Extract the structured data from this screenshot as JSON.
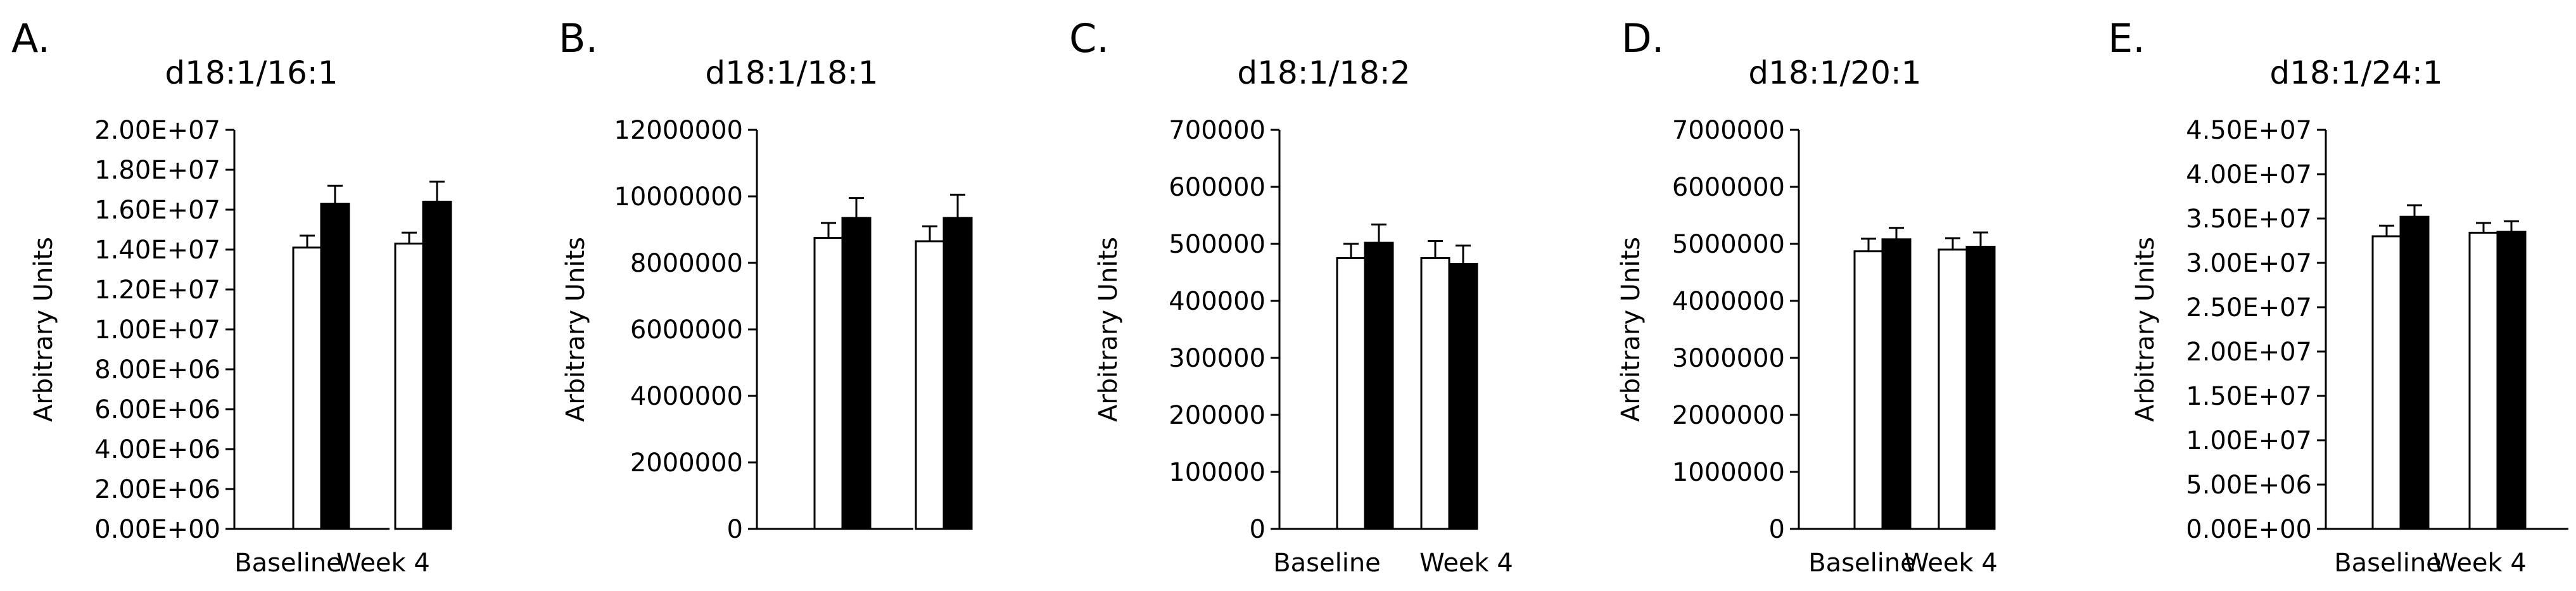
{
  "chart_data": [
    {
      "type": "bar",
      "panel_label": "A.",
      "title": "d18:1/16:1",
      "ylabel": "Arbitrary Units",
      "xlabel": "",
      "categories": [
        "Baseline",
        "Week 4"
      ],
      "series": [
        {
          "name": "open",
          "color": "#ffffff",
          "values": [
            14100000,
            14300000
          ],
          "errors": [
            600000,
            550000
          ]
        },
        {
          "name": "filled",
          "color": "#000000",
          "values": [
            16300000,
            16400000
          ],
          "errors": [
            900000,
            1000000
          ]
        }
      ],
      "ylim": [
        0,
        20000000
      ],
      "yticks": [
        0,
        2000000,
        4000000,
        6000000,
        8000000,
        10000000,
        12000000,
        14000000,
        16000000,
        18000000,
        20000000
      ],
      "ytick_labels": [
        "0.00E+00",
        "2.00E+06",
        "4.00E+06",
        "6.00E+06",
        "8.00E+06",
        "1.00E+07",
        "1.20E+07",
        "1.40E+07",
        "1.60E+07",
        "1.80E+07",
        "2.00E+07"
      ],
      "legend": "none",
      "grid": false
    },
    {
      "type": "bar",
      "panel_label": "B.",
      "title": "d18:1/18:1",
      "ylabel": "Arbitrary Units",
      "xlabel": "",
      "categories": [
        "Baseline",
        "Week 4"
      ],
      "series": [
        {
          "name": "open",
          "color": "#ffffff",
          "values": [
            8750000,
            8650000
          ],
          "errors": [
            450000,
            450000
          ]
        },
        {
          "name": "filled",
          "color": "#000000",
          "values": [
            9350000,
            9350000
          ],
          "errors": [
            600000,
            700000
          ]
        }
      ],
      "ylim": [
        0,
        12000000
      ],
      "yticks": [
        0,
        2000000,
        4000000,
        6000000,
        8000000,
        10000000,
        12000000
      ],
      "ytick_labels": [
        "0",
        "2000000",
        "4000000",
        "6000000",
        "8000000",
        "10000000",
        "12000000"
      ],
      "legend": "none",
      "grid": false
    },
    {
      "type": "bar",
      "panel_label": "C.",
      "title": "d18:1/18:2",
      "ylabel": "Arbitrary Units",
      "xlabel": "",
      "categories": [
        "Baseline",
        "Week 4"
      ],
      "series": [
        {
          "name": "open",
          "color": "#ffffff",
          "values": [
            475000,
            475000
          ],
          "errors": [
            25000,
            30000
          ]
        },
        {
          "name": "filled",
          "color": "#000000",
          "values": [
            502000,
            465000
          ],
          "errors": [
            32000,
            32000
          ]
        }
      ],
      "ylim": [
        0,
        700000
      ],
      "yticks": [
        0,
        100000,
        200000,
        300000,
        400000,
        500000,
        600000,
        700000
      ],
      "ytick_labels": [
        "0",
        "100000",
        "200000",
        "300000",
        "400000",
        "500000",
        "600000",
        "700000"
      ],
      "legend": "none",
      "grid": false
    },
    {
      "type": "bar",
      "panel_label": "D.",
      "title": "d18:1/20:1",
      "ylabel": "Arbitrary Units",
      "xlabel": "",
      "categories": [
        "Baseline",
        "Week 4"
      ],
      "series": [
        {
          "name": "open",
          "color": "#ffffff",
          "values": [
            4870000,
            4900000
          ],
          "errors": [
            220000,
            200000
          ]
        },
        {
          "name": "filled",
          "color": "#000000",
          "values": [
            5080000,
            4950000
          ],
          "errors": [
            200000,
            250000
          ]
        }
      ],
      "ylim": [
        0,
        7000000
      ],
      "yticks": [
        0,
        1000000,
        2000000,
        3000000,
        4000000,
        5000000,
        6000000,
        7000000
      ],
      "ytick_labels": [
        "0",
        "1000000",
        "2000000",
        "3000000",
        "4000000",
        "5000000",
        "6000000",
        "7000000"
      ],
      "legend": "none",
      "grid": false
    },
    {
      "type": "bar",
      "panel_label": "E.",
      "title": "d18:1/24:1",
      "ylabel": "Arbitrary Units",
      "xlabel": "",
      "categories": [
        "Baseline",
        "Week 4"
      ],
      "series": [
        {
          "name": "open",
          "color": "#ffffff",
          "values": [
            33000000,
            33400000
          ],
          "errors": [
            1200000,
            1100000
          ]
        },
        {
          "name": "filled",
          "color": "#000000",
          "values": [
            35200000,
            33500000
          ],
          "errors": [
            1300000,
            1200000
          ]
        }
      ],
      "ylim": [
        0,
        45000000
      ],
      "yticks": [
        0,
        5000000,
        10000000,
        15000000,
        20000000,
        25000000,
        30000000,
        35000000,
        40000000,
        45000000
      ],
      "ytick_labels": [
        "0.00E+00",
        "5.00E+06",
        "1.00E+07",
        "1.50E+07",
        "2.00E+07",
        "2.50E+07",
        "3.00E+07",
        "3.50E+07",
        "4.00E+07",
        "4.50E+07"
      ],
      "legend": "none",
      "grid": false
    }
  ]
}
